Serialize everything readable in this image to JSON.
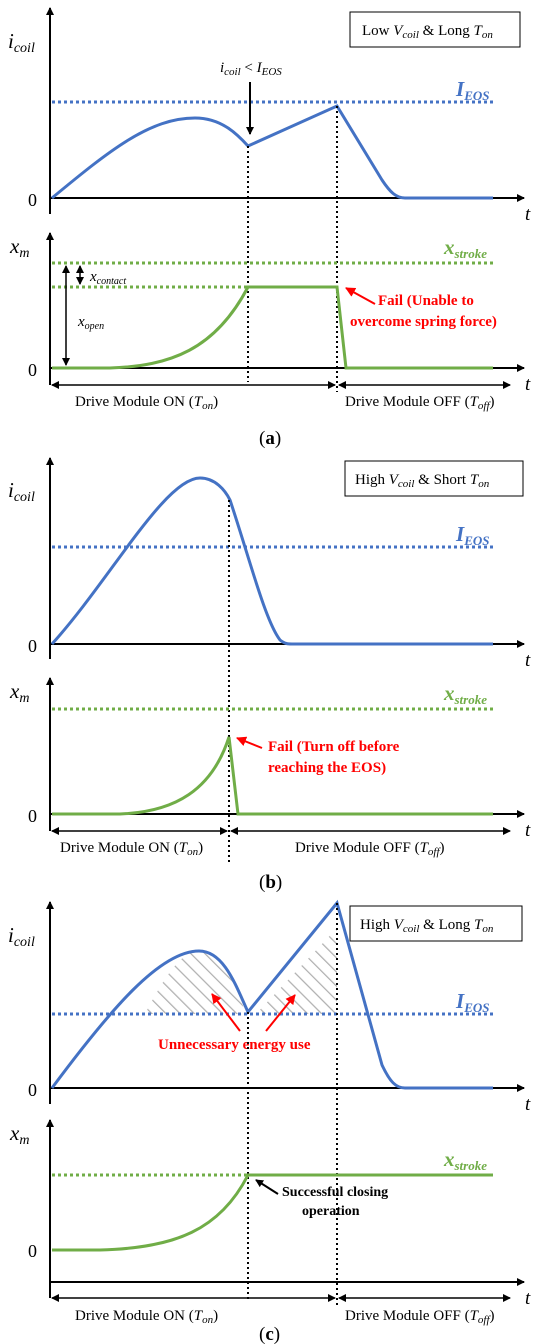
{
  "colors": {
    "current": "#4472c4",
    "stroke": "#70ad47",
    "fail": "#ff0000",
    "axis": "#000000",
    "hatch": "#b0b0b0"
  },
  "common": {
    "i_sym": "i",
    "i_sub": "coil",
    "x_sym": "x",
    "x_sub": "m",
    "t": "t",
    "zero": "0",
    "ieos_sym": "I",
    "ieos_sub": "EOS",
    "xstroke_sym": "x",
    "xstroke_sub": "stroke",
    "on_text": "Drive Module ON (",
    "on_sym": "T",
    "on_sub": "on",
    "off_text": "Drive Module OFF (",
    "off_sym": "T",
    "off_sub": "off",
    "close_paren": ")"
  },
  "panels": [
    {
      "caption_open": "(",
      "caption_letter": "a",
      "caption_close": ")",
      "legend": {
        "level": "Low",
        "v_sym": "V",
        "v_sub": "coil",
        "middle": "& Long",
        "t_sym": "T",
        "t_sub": "on"
      },
      "annotation": {
        "i_sym": "i",
        "i_sub": "coil",
        "lt": "<",
        "I_sym": "I",
        "I_sub": "EOS"
      },
      "x_contact_sym": "x",
      "x_contact_sub": "contact",
      "x_open_sym": "x",
      "x_open_sub": "open",
      "fail_line1": "Fail (Unable to",
      "fail_line2": "overcome spring force)"
    },
    {
      "caption_open": "(",
      "caption_letter": "b",
      "caption_close": ")",
      "legend": {
        "level": "High",
        "v_sym": "V",
        "v_sub": "coil",
        "middle": "& Short",
        "t_sym": "T",
        "t_sub": "on"
      },
      "fail_line1": "Fail (Turn off before",
      "fail_line2": "reaching the EOS)"
    },
    {
      "caption_open": "(",
      "caption_letter": "c",
      "caption_close": ")",
      "legend": {
        "level": "High",
        "v_sym": "V",
        "v_sub": "coil",
        "middle": "& Long",
        "t_sym": "T",
        "t_sub": "on"
      },
      "energy_label": "Unnecessary energy use",
      "success_line1": "Successful closing",
      "success_line2": "operation"
    }
  ]
}
